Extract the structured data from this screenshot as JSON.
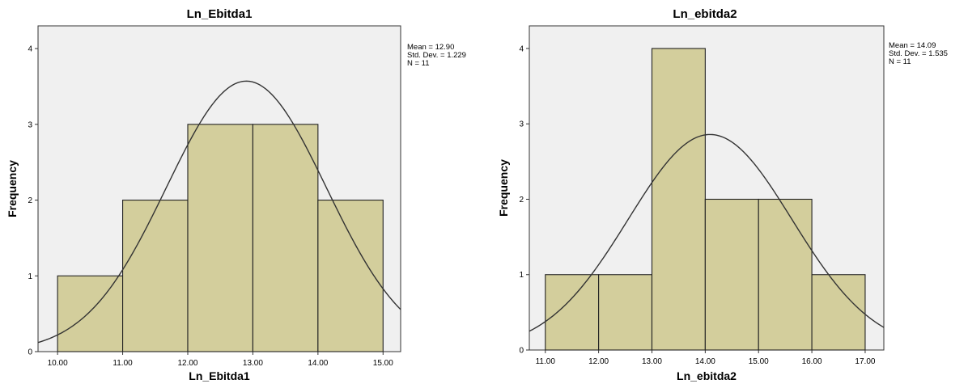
{
  "chart_data": [
    {
      "type": "bar",
      "title": "Ln_Ebitda1",
      "xlabel": "Ln_Ebitda1",
      "ylabel": "Frequency",
      "x_ticks": [
        "10.00",
        "11.00",
        "12.00",
        "13.00",
        "14.00",
        "15.00"
      ],
      "y_ticks": [
        "0",
        "1",
        "2",
        "3",
        "4"
      ],
      "bins": [
        {
          "from": 10,
          "to": 11,
          "value": 1
        },
        {
          "from": 11,
          "to": 12,
          "value": 2
        },
        {
          "from": 12,
          "to": 13,
          "value": 3
        },
        {
          "from": 13,
          "to": 14,
          "value": 3
        },
        {
          "from": 14,
          "to": 15,
          "value": 2
        }
      ],
      "xlim": [
        9.7,
        15.27
      ],
      "ylim": [
        0,
        4.3
      ],
      "stats": {
        "mean": 12.9,
        "std": 1.229,
        "n": 11
      },
      "stats_text": [
        "Mean = 12.90",
        "Std. Dev. = 1.229",
        "N = 11"
      ],
      "normal_curve": true,
      "plot_background": "#f0f0f0",
      "bar_color": "#d3ce9c",
      "curve_color": "#333333"
    },
    {
      "type": "bar",
      "title": "Ln_ebitda2",
      "xlabel": "Ln_ebitda2",
      "ylabel": "Frequency",
      "x_ticks": [
        "11.00",
        "12.00",
        "13.00",
        "14.00",
        "15.00",
        "16.00",
        "17.00"
      ],
      "y_ticks": [
        "0",
        "1",
        "2",
        "3",
        "4"
      ],
      "bins": [
        {
          "from": 11,
          "to": 12,
          "value": 1
        },
        {
          "from": 12,
          "to": 13,
          "value": 1
        },
        {
          "from": 13,
          "to": 14,
          "value": 4
        },
        {
          "from": 14,
          "to": 15,
          "value": 2
        },
        {
          "from": 15,
          "to": 16,
          "value": 2
        },
        {
          "from": 16,
          "to": 17,
          "value": 1
        }
      ],
      "xlim": [
        10.7,
        17.35
      ],
      "ylim": [
        0,
        4.3
      ],
      "stats": {
        "mean": 14.09,
        "std": 1.535,
        "n": 11
      },
      "stats_text": [
        "Mean = 14.09",
        "Std. Dev. = 1.535",
        "N = 11"
      ],
      "normal_curve": true,
      "plot_background": "#f0f0f0",
      "bar_color": "#d3ce9c",
      "curve_color": "#333333"
    }
  ]
}
